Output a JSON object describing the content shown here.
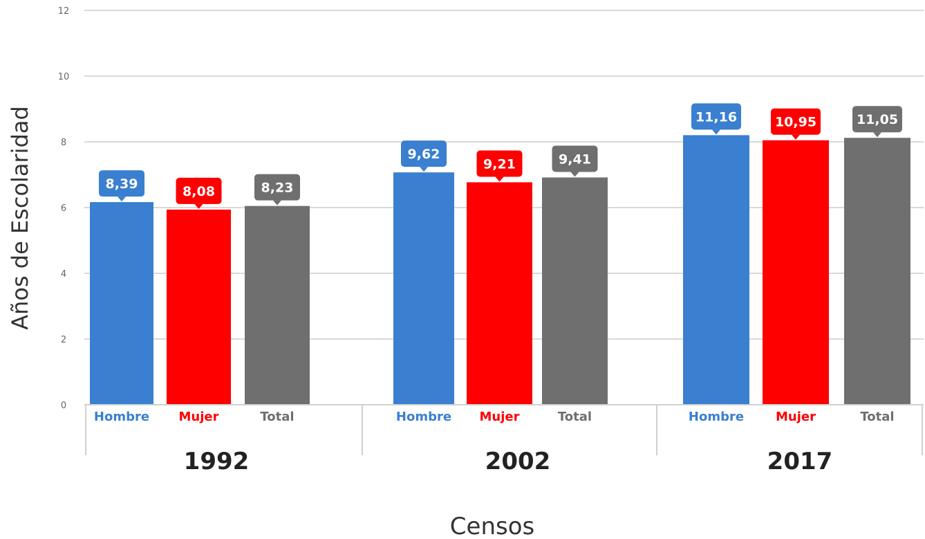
{
  "chart_data": {
    "type": "bar",
    "title": "",
    "xlabel": "Censos",
    "ylabel": "Años de Escolaridad",
    "ylim": [
      0,
      12
    ],
    "yticks": [
      0,
      2,
      4,
      6,
      8,
      10,
      12
    ],
    "grid": true,
    "categories": [
      "1992",
      "2002",
      "2017"
    ],
    "series": [
      {
        "name": "Hombre",
        "color": "#3a7fd0",
        "values": [
          8.39,
          9.62,
          11.16
        ],
        "labels": [
          "8,39",
          "9,62",
          "11,16"
        ]
      },
      {
        "name": "Mujer",
        "color": "#ff0000",
        "values": [
          8.08,
          9.21,
          10.95
        ],
        "labels": [
          "8,08",
          "9,21",
          "10,95"
        ]
      },
      {
        "name": "Total",
        "color": "#6f6f6f",
        "values": [
          8.23,
          9.41,
          11.05
        ],
        "labels": [
          "8,23",
          "9,41",
          "11,05"
        ]
      }
    ]
  }
}
